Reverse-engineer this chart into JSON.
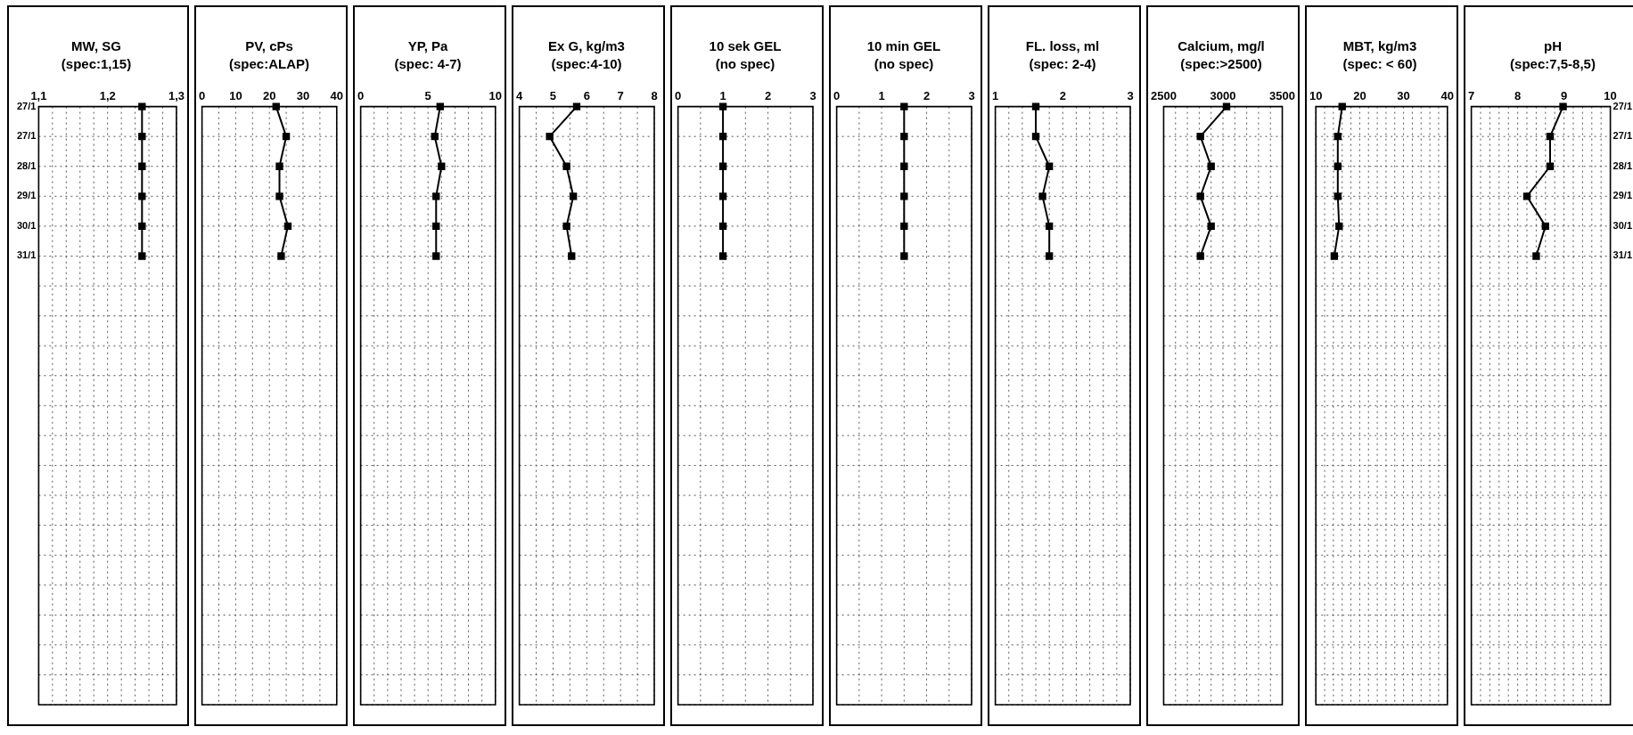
{
  "chart_data": [
    {
      "type": "line",
      "orientation": "horizontal",
      "title": "MW, SG",
      "subtitle": "(spec:1,15)",
      "categories": [
        "27/1",
        "27/1",
        "28/1",
        "29/1",
        "30/1",
        "31/1",
        null,
        null,
        null,
        null,
        null,
        null,
        null,
        null,
        null,
        null,
        null,
        null,
        null,
        null,
        null
      ],
      "values": [
        1.25,
        1.25,
        1.25,
        1.25,
        1.25,
        1.25,
        null,
        null,
        null,
        null,
        null,
        null,
        null,
        null,
        null,
        null,
        null,
        null,
        null,
        null,
        null
      ],
      "color": "#000000",
      "xlim": [
        1.1,
        1.3
      ],
      "xticks": [
        {
          "value": 1.1,
          "label": "1,1"
        },
        {
          "value": 1.12,
          "label": null
        },
        {
          "value": 1.14,
          "label": null
        },
        {
          "value": 1.16,
          "label": null
        },
        {
          "value": 1.18,
          "label": null
        },
        {
          "value": 1.2,
          "label": "1,2"
        },
        {
          "value": 1.22,
          "label": null
        },
        {
          "value": 1.24,
          "label": null
        },
        {
          "value": 1.26,
          "label": null
        },
        {
          "value": 1.28,
          "label": null
        },
        {
          "value": 1.3,
          "label": "1,3"
        }
      ],
      "grid": true,
      "marker": "square"
    },
    {
      "type": "line",
      "orientation": "horizontal",
      "title": "PV, cPs",
      "subtitle": "(spec:ALAP)",
      "categories": [
        null,
        null,
        null,
        null,
        null,
        null,
        null,
        null,
        null,
        null,
        null,
        null,
        null,
        null,
        null,
        null,
        null,
        null,
        null,
        null,
        null
      ],
      "values": [
        22,
        25,
        23,
        23,
        25.5,
        23.5,
        null,
        null,
        null,
        null,
        null,
        null,
        null,
        null,
        null,
        null,
        null,
        null,
        null,
        null,
        null
      ],
      "color": "#000000",
      "xlim": [
        0,
        40
      ],
      "xticks": [
        0,
        {
          "value": 5,
          "label": null
        },
        10,
        {
          "value": 15,
          "label": null
        },
        20,
        {
          "value": 25,
          "label": null
        },
        30,
        {
          "value": 35,
          "label": null
        },
        40
      ],
      "grid": true,
      "marker": "square",
      "tick_labels": "x"
    },
    {
      "type": "line",
      "orientation": "horizontal",
      "title": "YP, Pa",
      "subtitle": "(spec: 4-7)",
      "categories": [
        null,
        null,
        null,
        null,
        null,
        null,
        null,
        null,
        null,
        null,
        null,
        null,
        null,
        null,
        null,
        null,
        null,
        null,
        null,
        null,
        null
      ],
      "values": [
        5.9,
        5.5,
        6,
        5.6,
        5.6,
        5.6,
        null,
        null,
        null,
        null,
        null,
        null,
        null,
        null,
        null,
        null,
        null,
        null,
        null,
        null,
        null
      ],
      "color": "#000000",
      "xlim": [
        0,
        10
      ],
      "xticks": [
        0,
        {
          "value": 1,
          "label": null
        },
        {
          "value": 2,
          "label": null
        },
        {
          "value": 3,
          "label": null
        },
        {
          "value": 4,
          "label": null
        },
        5,
        {
          "value": 6,
          "label": null
        },
        {
          "value": 7,
          "label": null
        },
        {
          "value": 8,
          "label": null
        },
        {
          "value": 9,
          "label": null
        },
        10
      ],
      "grid": true,
      "marker": "square",
      "tick_labels": "x"
    },
    {
      "type": "line",
      "orientation": "horizontal",
      "title": "Ex G, kg/m3",
      "subtitle": "(spec:4-10)",
      "categories": [
        null,
        null,
        null,
        null,
        null,
        null,
        null,
        null,
        null,
        null,
        null,
        null,
        null,
        null,
        null,
        null,
        null,
        null,
        null,
        null,
        null
      ],
      "values": [
        5.7,
        4.9,
        5.4,
        5.6,
        5.4,
        5.55,
        null,
        null,
        null,
        null,
        null,
        null,
        null,
        null,
        null,
        null,
        null,
        null,
        null,
        null,
        null
      ],
      "color": "#000000",
      "xlim": [
        4,
        8
      ],
      "xticks": [
        4,
        {
          "value": 4.5,
          "label": null
        },
        5,
        {
          "value": 5.5,
          "label": null
        },
        6,
        {
          "value": 6.5,
          "label": null
        },
        7,
        {
          "value": 7.5,
          "label": null
        },
        8
      ],
      "grid": true,
      "marker": "square",
      "tick_labels": "x"
    },
    {
      "type": "line",
      "orientation": "horizontal",
      "title": "10 sek GEL",
      "subtitle": "(no spec)",
      "categories": [
        null,
        null,
        null,
        null,
        null,
        null,
        null,
        null,
        null,
        null,
        null,
        null,
        null,
        null,
        null,
        null,
        null,
        null,
        null,
        null,
        null
      ],
      "values": [
        1,
        1,
        1,
        1,
        1,
        1,
        null,
        null,
        null,
        null,
        null,
        null,
        null,
        null,
        null,
        null,
        null,
        null,
        null,
        null,
        null
      ],
      "color": "#000000",
      "xlim": [
        0,
        3
      ],
      "xticks": [
        0,
        {
          "value": 0.5,
          "label": null
        },
        1,
        {
          "value": 1.5,
          "label": null
        },
        2,
        {
          "value": 2.5,
          "label": null
        },
        3
      ],
      "grid": true,
      "marker": "square",
      "tick_labels": "x"
    },
    {
      "type": "line",
      "orientation": "horizontal",
      "title": "10 min GEL",
      "subtitle": "(no spec)",
      "categories": [
        null,
        null,
        null,
        null,
        null,
        null,
        null,
        null,
        null,
        null,
        null,
        null,
        null,
        null,
        null,
        null,
        null,
        null,
        null,
        null,
        null
      ],
      "values": [
        1.5,
        1.5,
        1.5,
        1.5,
        1.5,
        1.5,
        null,
        null,
        null,
        null,
        null,
        null,
        null,
        null,
        null,
        null,
        null,
        null,
        null,
        null,
        null
      ],
      "color": "#000000",
      "xlim": [
        0,
        3
      ],
      "xticks": [
        0,
        {
          "value": 0.5,
          "label": null
        },
        1,
        {
          "value": 1.5,
          "label": null
        },
        2,
        {
          "value": 2.5,
          "label": null
        },
        3
      ],
      "grid": true,
      "marker": "square",
      "tick_labels": "x"
    },
    {
      "type": "line",
      "orientation": "horizontal",
      "title": "FL. loss, ml",
      "subtitle": "(spec: 2-4)",
      "categories": [
        null,
        null,
        null,
        null,
        null,
        null,
        null,
        null,
        null,
        null,
        null,
        null,
        null,
        null,
        null,
        null,
        null,
        null,
        null,
        null,
        null
      ],
      "values": [
        1.6,
        1.6,
        1.8,
        1.7,
        1.8,
        1.8,
        null,
        null,
        null,
        null,
        null,
        null,
        null,
        null,
        null,
        null,
        null,
        null,
        null,
        null,
        null
      ],
      "color": "#000000",
      "xlim": [
        1,
        3
      ],
      "xticks": [
        1,
        {
          "value": 1.2,
          "label": null
        },
        {
          "value": 1.4,
          "label": null
        },
        {
          "value": 1.6,
          "label": null
        },
        {
          "value": 1.8,
          "label": null
        },
        2,
        {
          "value": 2.2,
          "label": null
        },
        {
          "value": 2.4,
          "label": null
        },
        {
          "value": 2.6,
          "label": null
        },
        {
          "value": 2.8,
          "label": null
        },
        3
      ],
      "grid": true,
      "marker": "square",
      "tick_labels": "x"
    },
    {
      "type": "line",
      "orientation": "horizontal",
      "title": "Calcium, mg/l",
      "subtitle": "(spec:>2500)",
      "categories": [
        null,
        null,
        null,
        null,
        null,
        null,
        null,
        null,
        null,
        null,
        null,
        null,
        null,
        null,
        null,
        null,
        null,
        null,
        null,
        null,
        null
      ],
      "values": [
        3030,
        2810,
        2900,
        2810,
        2900,
        2810,
        null,
        null,
        null,
        null,
        null,
        null,
        null,
        null,
        null,
        null,
        null,
        null,
        null,
        null,
        null
      ],
      "color": "#000000",
      "xlim": [
        2500,
        3500
      ],
      "xticks": [
        2500,
        {
          "value": 2600,
          "label": null
        },
        {
          "value": 2700,
          "label": null
        },
        {
          "value": 2800,
          "label": null
        },
        {
          "value": 2900,
          "label": null
        },
        3000,
        {
          "value": 3100,
          "label": null
        },
        {
          "value": 3200,
          "label": null
        },
        {
          "value": 3300,
          "label": null
        },
        {
          "value": 3400,
          "label": null
        },
        3500
      ],
      "grid": true,
      "marker": "square",
      "tick_labels": "x"
    },
    {
      "type": "line",
      "orientation": "horizontal",
      "title": "MBT, kg/m3",
      "subtitle": "(spec: < 60)",
      "categories": [
        null,
        null,
        null,
        null,
        null,
        null,
        null,
        null,
        null,
        null,
        null,
        null,
        null,
        null,
        null,
        null,
        null,
        null,
        null,
        null,
        null
      ],
      "values": [
        16,
        15,
        15,
        15,
        15.3,
        14.2,
        null,
        null,
        null,
        null,
        null,
        null,
        null,
        null,
        null,
        null,
        null,
        null,
        null,
        null,
        null
      ],
      "color": "#000000",
      "xlim": [
        10,
        40
      ],
      "xticks": [
        10,
        {
          "value": 12,
          "label": null
        },
        {
          "value": 14,
          "label": null
        },
        {
          "value": 16,
          "label": null
        },
        {
          "value": 18,
          "label": null
        },
        20,
        {
          "value": 22,
          "label": null
        },
        {
          "value": 24,
          "label": null
        },
        {
          "value": 26,
          "label": null
        },
        {
          "value": 28,
          "label": null
        },
        30,
        {
          "value": 32,
          "label": null
        },
        {
          "value": 34,
          "label": null
        },
        {
          "value": 36,
          "label": null
        },
        {
          "value": 38,
          "label": null
        },
        40
      ],
      "grid": true,
      "marker": "square",
      "tick_labels": "x"
    },
    {
      "type": "line",
      "orientation": "horizontal",
      "title": "pH",
      "subtitle": "(spec:7,5-8,5)",
      "categories": [
        "27/1",
        "27/1",
        "28/1",
        "29/1",
        "30/1",
        "31/1",
        null,
        null,
        null,
        null,
        null,
        null,
        null,
        null,
        null,
        null,
        null,
        null,
        null,
        null,
        null
      ],
      "values": [
        8.98,
        8.7,
        8.7,
        8.2,
        8.6,
        8.4,
        null,
        null,
        null,
        null,
        null,
        null,
        null,
        null,
        null,
        null,
        null,
        null,
        null,
        null,
        null
      ],
      "color": "#000000",
      "xlim": [
        7,
        10
      ],
      "xticks": [
        7,
        {
          "value": 7.2,
          "label": null
        },
        {
          "value": 7.4,
          "label": null
        },
        {
          "value": 7.6,
          "label": null
        },
        {
          "value": 7.8,
          "label": null
        },
        8,
        {
          "value": 8.2,
          "label": null
        },
        {
          "value": 8.4,
          "label": null
        },
        {
          "value": 8.6,
          "label": null
        },
        {
          "value": 8.8,
          "label": null
        },
        9,
        {
          "value": 9.2,
          "label": null
        },
        {
          "value": 9.4,
          "label": null
        },
        {
          "value": 9.6,
          "label": null
        },
        {
          "value": 9.8,
          "label": null
        },
        10
      ],
      "grid": true,
      "marker": "square"
    }
  ]
}
